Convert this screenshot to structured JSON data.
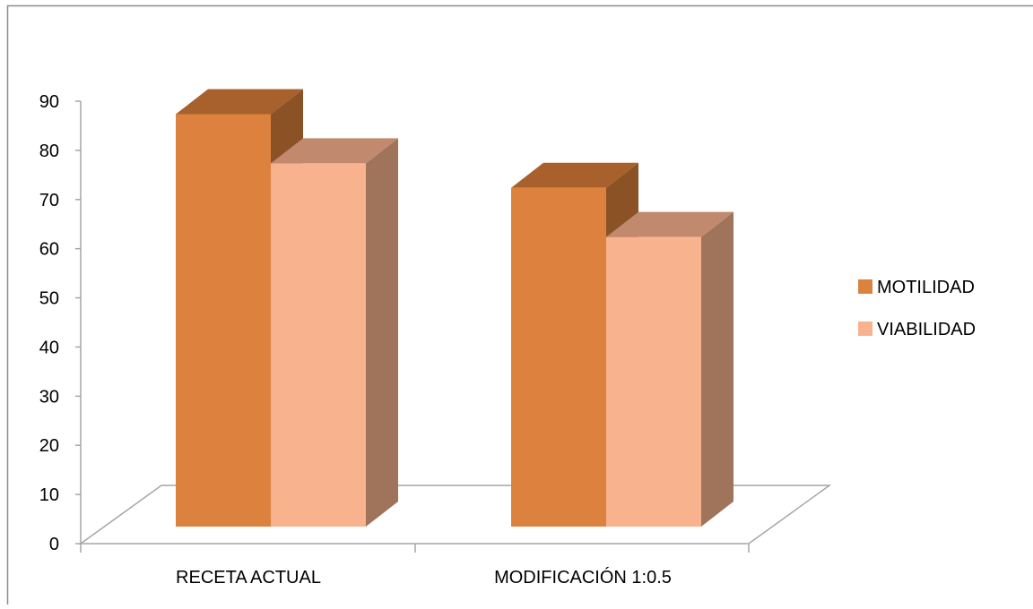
{
  "chart_data": {
    "type": "bar",
    "style": "3d-clustered-column",
    "categories": [
      "RECETA ACTUAL",
      "MODIFICACIÓN 1:0.5"
    ],
    "series": [
      {
        "name": "MOTILIDAD",
        "values": [
          85,
          70
        ],
        "color": "#DC823E"
      },
      {
        "name": "VIABILIDAD",
        "values": [
          75,
          60
        ],
        "color": "#F8B38E"
      }
    ],
    "ylim": [
      0,
      90
    ],
    "yticks": [
      0,
      10,
      20,
      30,
      40,
      50,
      60,
      70,
      80,
      90
    ],
    "legend": "right",
    "grid": false,
    "title": "",
    "xlabel": "",
    "ylabel": ""
  },
  "colors": {
    "axis": "#A6A6A6",
    "motilidad_front": "#DC823E",
    "motilidad_top": "#A8612D",
    "motilidad_side": "#8B5226",
    "viabilidad_front": "#F8B38E",
    "viabilidad_top": "#C18A6E",
    "viabilidad_side": "#A0745B"
  }
}
